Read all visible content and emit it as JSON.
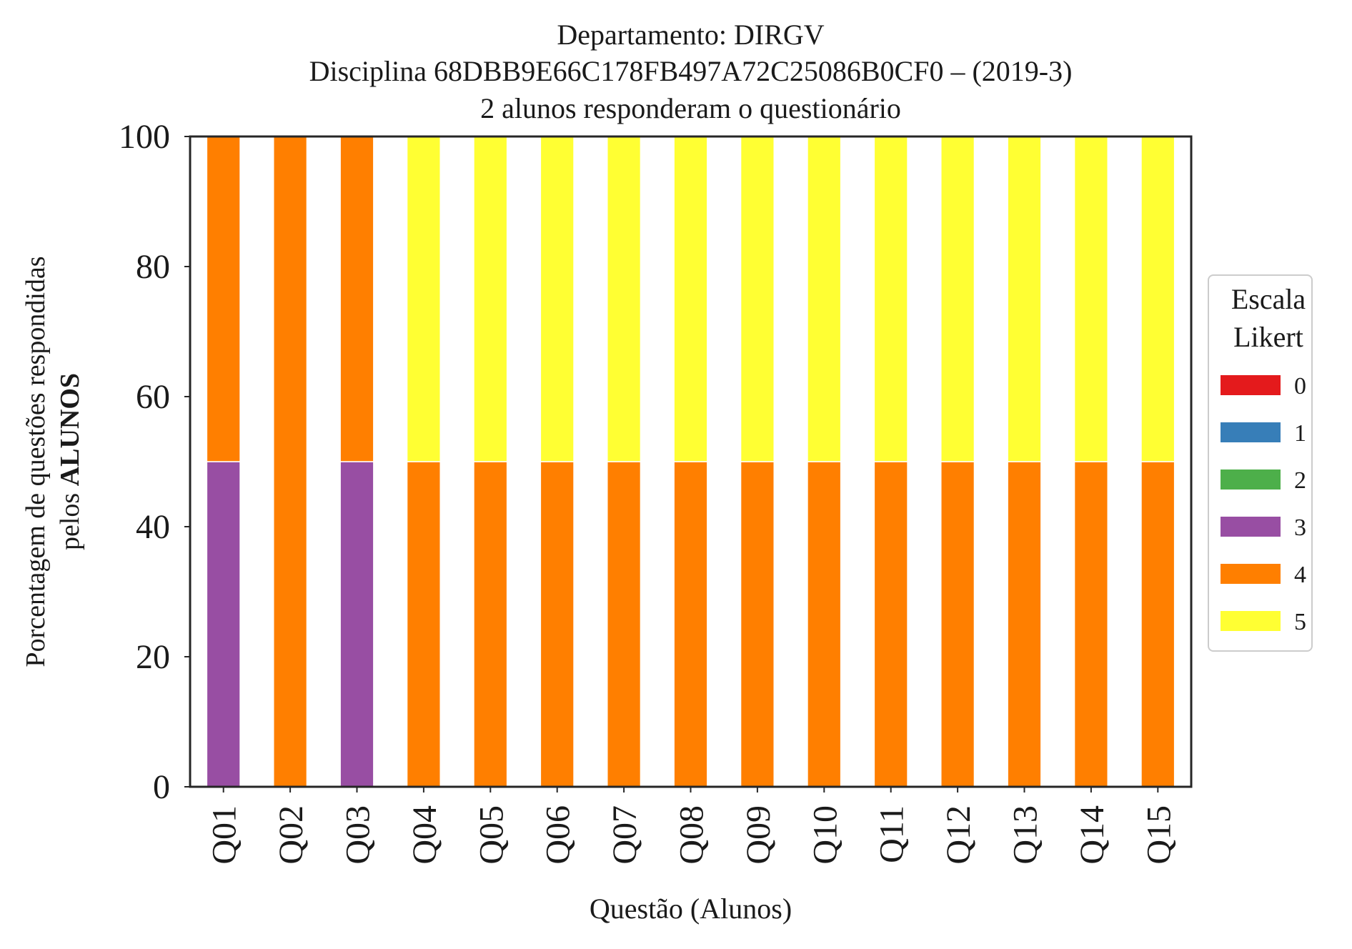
{
  "chart_data": {
    "type": "bar",
    "stacked": true,
    "title_lines": [
      "Departamento: DIRGV",
      "Disciplina 68DBB9E66C178FB497A72C25086B0CF0 – (2019-3)",
      "2 alunos responderam o questionário"
    ],
    "xlabel": "Questão (Alunos)",
    "ylabel_line1": "Porcentagem de questões respondidas",
    "ylabel_line2_prefix": "pelos ",
    "ylabel_line2_bold": "ALUNOS",
    "ylim": [
      0,
      100
    ],
    "yticks": [
      "0",
      "20",
      "40",
      "60",
      "80",
      "100"
    ],
    "grid": false,
    "categories": [
      "Q01",
      "Q02",
      "Q03",
      "Q04",
      "Q05",
      "Q06",
      "Q07",
      "Q08",
      "Q09",
      "Q10",
      "Q11",
      "Q12",
      "Q13",
      "Q14",
      "Q15"
    ],
    "series": [
      {
        "name": "0",
        "color": "#e41a1c",
        "values": [
          0,
          0,
          0,
          0,
          0,
          0,
          0,
          0,
          0,
          0,
          0,
          0,
          0,
          0,
          0
        ]
      },
      {
        "name": "1",
        "color": "#377eb8",
        "values": [
          0,
          0,
          0,
          0,
          0,
          0,
          0,
          0,
          0,
          0,
          0,
          0,
          0,
          0,
          0
        ]
      },
      {
        "name": "2",
        "color": "#4daf4a",
        "values": [
          0,
          0,
          0,
          0,
          0,
          0,
          0,
          0,
          0,
          0,
          0,
          0,
          0,
          0,
          0
        ]
      },
      {
        "name": "3",
        "color": "#984ea3",
        "values": [
          50,
          0,
          50,
          0,
          0,
          0,
          0,
          0,
          0,
          0,
          0,
          0,
          0,
          0,
          0
        ]
      },
      {
        "name": "4",
        "color": "#ff7f00",
        "values": [
          50,
          100,
          50,
          50,
          50,
          50,
          50,
          50,
          50,
          50,
          50,
          50,
          50,
          50,
          50
        ]
      },
      {
        "name": "5",
        "color": "#ffff33",
        "values": [
          0,
          0,
          0,
          50,
          50,
          50,
          50,
          50,
          50,
          50,
          50,
          50,
          50,
          50,
          50
        ]
      }
    ],
    "legend": {
      "title_lines": [
        "Escala",
        "Likert"
      ],
      "placement": "center-right, outside plot"
    }
  }
}
